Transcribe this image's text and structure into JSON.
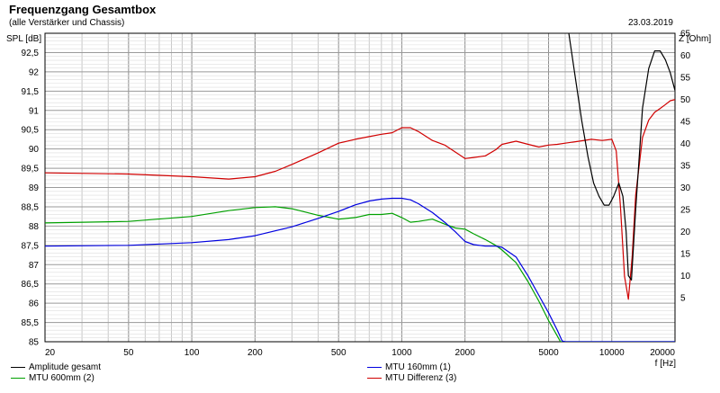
{
  "title": "Frequenzgang Gesamtbox",
  "subtitle": "(alle Verstärker und Chassis)",
  "date": "23.03.2019",
  "chart_data": {
    "type": "line",
    "title": "Frequenzgang Gesamtbox",
    "subtitle": "(alle Verstärker und Chassis)",
    "xlabel": "f [Hz]",
    "ylabel": "SPL [dB]",
    "y2label": "Z [Ohm]",
    "x_scale": "log",
    "xlim": [
      20,
      20000
    ],
    "ylim": [
      85,
      93
    ],
    "y2lim": [
      -5,
      65
    ],
    "grid": true,
    "legend_position": "bottom",
    "x_ticks": [
      20,
      50,
      100,
      200,
      500,
      1000,
      2000,
      5000,
      10000,
      20000
    ],
    "x_tick_labels": [
      "20",
      "50",
      "100",
      "200",
      "500",
      "1000",
      "2000",
      "5000",
      "10000",
      "20000"
    ],
    "y_ticks": [
      85,
      85.5,
      86,
      86.5,
      87,
      87.5,
      88,
      88.5,
      89,
      89.5,
      90,
      90.5,
      91,
      91.5,
      92,
      92.5
    ],
    "y_tick_labels": [
      "85",
      "85,5",
      "86",
      "86,5",
      "87",
      "87,5",
      "88",
      "88,5",
      "89",
      "89,5",
      "90",
      "90,5",
      "91",
      "91,5",
      "92",
      "92,5"
    ],
    "y2_ticks": [
      5,
      10,
      15,
      20,
      25,
      30,
      35,
      40,
      45,
      50,
      55,
      60,
      65
    ],
    "y2_tick_labels": [
      "5",
      "10",
      "15",
      "20",
      "25",
      "30",
      "35",
      "40",
      "45",
      "50",
      "55",
      "60",
      "65"
    ],
    "series": [
      {
        "name": "Amplitude gesamt",
        "color": "#000000",
        "axis": "right",
        "x": [
          5700,
          6200,
          6700,
          7200,
          7700,
          8200,
          8700,
          9200,
          9700,
          10200,
          10800,
          11300,
          11700,
          12000,
          12400,
          13000,
          14000,
          15000,
          16000,
          17000,
          18000,
          19000,
          20000
        ],
        "y": [
          70,
          66,
          55,
          45,
          37,
          31,
          28,
          26,
          26,
          28,
          31,
          28,
          20,
          10,
          9,
          25,
          48,
          57,
          61,
          61,
          59,
          56,
          52
        ]
      },
      {
        "name": "MTU 160mm (1)",
        "color": "#0000e0",
        "axis": "left",
        "x": [
          20,
          50,
          100,
          150,
          200,
          300,
          400,
          500,
          600,
          700,
          800,
          900,
          1000,
          1100,
          1200,
          1400,
          1600,
          1800,
          2000,
          2200,
          2500,
          2800,
          3000,
          3500,
          4000,
          4500,
          5000,
          5500,
          5800,
          6000,
          7000,
          10000,
          20000
        ],
        "y": [
          87.48,
          87.5,
          87.57,
          87.65,
          87.75,
          87.98,
          88.2,
          88.38,
          88.55,
          88.65,
          88.7,
          88.72,
          88.72,
          88.68,
          88.58,
          88.35,
          88.1,
          87.85,
          87.6,
          87.52,
          87.48,
          87.48,
          87.45,
          87.2,
          86.7,
          86.2,
          85.75,
          85.3,
          85.02,
          85,
          85,
          85,
          85
        ]
      },
      {
        "name": "MTU 600mm (2)",
        "color": "#00a000",
        "axis": "left",
        "x": [
          20,
          50,
          100,
          150,
          200,
          250,
          300,
          400,
          500,
          600,
          700,
          800,
          900,
          1000,
          1100,
          1200,
          1400,
          1600,
          1800,
          2000,
          2200,
          2500,
          2800,
          3000,
          3500,
          4000,
          4500,
          5000,
          5500,
          5700,
          6000,
          10000,
          20000
        ],
        "y": [
          88.08,
          88.12,
          88.25,
          88.4,
          88.48,
          88.5,
          88.45,
          88.28,
          88.18,
          88.22,
          88.3,
          88.3,
          88.33,
          88.22,
          88.1,
          88.12,
          88.18,
          88.05,
          87.95,
          87.92,
          87.8,
          87.65,
          87.5,
          87.38,
          87.05,
          86.55,
          86.05,
          85.55,
          85.15,
          85,
          85,
          85,
          85
        ]
      },
      {
        "name": "MTU Differenz (3)",
        "color": "#d00000",
        "axis": "left",
        "x": [
          20,
          50,
          100,
          150,
          200,
          250,
          300,
          400,
          500,
          600,
          700,
          800,
          900,
          1000,
          1100,
          1200,
          1400,
          1600,
          1800,
          2000,
          2200,
          2500,
          2800,
          3000,
          3500,
          4000,
          4500,
          5000,
          5500,
          6000,
          7000,
          8000,
          9000,
          10000,
          10500,
          11000,
          11500,
          12000,
          12500,
          13000,
          14000,
          15000,
          16000,
          17000,
          18000,
          19000,
          20000
        ],
        "y": [
          89.38,
          89.35,
          89.28,
          89.22,
          89.28,
          89.42,
          89.6,
          89.9,
          90.15,
          90.25,
          90.32,
          90.38,
          90.42,
          90.55,
          90.55,
          90.45,
          90.22,
          90.1,
          89.92,
          89.75,
          89.78,
          89.82,
          89.98,
          90.12,
          90.2,
          90.12,
          90.05,
          90.1,
          90.12,
          90.15,
          90.2,
          90.25,
          90.22,
          90.25,
          89.95,
          88.5,
          86.7,
          86.1,
          87.2,
          88.8,
          90.3,
          90.75,
          90.95,
          91.05,
          91.15,
          91.25,
          91.28
        ]
      }
    ]
  }
}
